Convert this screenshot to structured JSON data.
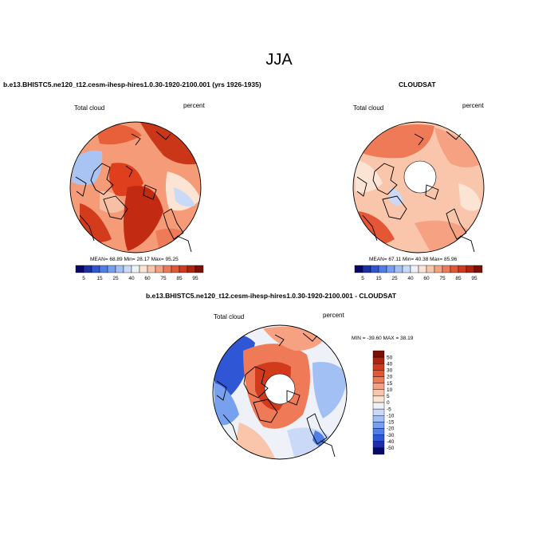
{
  "title": "JJA",
  "panels": [
    {
      "title": "b.e13.BHISTC5.ne120_t12.cesm-ihesp-hires1.0.30-1920-2100.001 (yrs 1926-1935)",
      "left_label": "Total cloud",
      "right_label": "percent",
      "stats": "MEAN=  68.89  Min=  28.17  Max=  95.25"
    },
    {
      "title": "CLOUDSAT",
      "left_label": "Total cloud",
      "right_label": "percent",
      "stats": "MEAN=  67.11  Min=  40.38  Max=  85.96"
    },
    {
      "title": "b.e13.BHISTC5.ne120_t12.cesm-ihesp-hires1.0.30-1920-2100.001 - CLOUDSAT",
      "left_label": "Total cloud",
      "right_label": "percent",
      "stats": "MIN = -39.60 MAX =  38.19"
    }
  ],
  "chart_data": [
    {
      "type": "heatmap",
      "projection": "polar-stereographic (north)",
      "title": "b.e13.BHISTC5.ne120_t12.cesm-ihesp-hires1.0.30-1920-2100.001 (yrs 1926-1935)",
      "variable": "Total cloud",
      "units": "percent",
      "mean": 68.89,
      "min": 28.17,
      "max": 95.25,
      "colorbar_levels": [
        5,
        10,
        15,
        20,
        25,
        30,
        35,
        40,
        50,
        60,
        65,
        70,
        75,
        80,
        85,
        90,
        95
      ],
      "colorbar_tick_labels": [
        "5",
        "15",
        "25",
        "40",
        "60",
        "75",
        "85",
        "95"
      ]
    },
    {
      "type": "heatmap",
      "projection": "polar-stereographic (north)",
      "title": "CLOUDSAT",
      "variable": "Total cloud",
      "units": "percent",
      "mean": 67.11,
      "min": 40.38,
      "max": 85.96,
      "colorbar_levels": [
        5,
        10,
        15,
        20,
        25,
        30,
        35,
        40,
        50,
        60,
        65,
        70,
        75,
        80,
        85,
        90,
        95
      ],
      "colorbar_tick_labels": [
        "5",
        "15",
        "25",
        "40",
        "60",
        "75",
        "85",
        "95"
      ]
    },
    {
      "type": "heatmap",
      "projection": "polar-stereographic (north)",
      "title": "b.e13.BHISTC5.ne120_t12.cesm-ihesp-hires1.0.30-1920-2100.001 - CLOUDSAT",
      "variable": "Total cloud",
      "units": "percent",
      "min": -39.6,
      "max": 38.19,
      "colorbar_levels": [
        -50,
        -40,
        -30,
        -20,
        -15,
        -10,
        -5,
        0,
        5,
        10,
        15,
        20,
        30,
        40,
        50
      ],
      "colorbar_tick_labels": [
        "50",
        "40",
        "30",
        "20",
        "15",
        "10",
        "5",
        "0",
        "-5",
        "-10",
        "-15",
        "-20",
        "-30",
        "-40",
        "-50"
      ]
    }
  ],
  "colors": {
    "abs_palette": [
      "#08086b",
      "#1c2fa8",
      "#2f56d4",
      "#4f7ee6",
      "#77a0ef",
      "#a2c0f4",
      "#cad9f7",
      "#eef2f8",
      "#fbe4d4",
      "#f9c6ab",
      "#f5a182",
      "#ef7a58",
      "#e55634",
      "#d13b1c",
      "#b0240f",
      "#7a0f06"
    ],
    "diff_palette": [
      "#7a0f06",
      "#b0240f",
      "#d13b1c",
      "#e55634",
      "#ef7a58",
      "#f5a182",
      "#f9c6ab",
      "#fbe4d4",
      "#eef2f8",
      "#cad9f7",
      "#a2c0f4",
      "#77a0ef",
      "#4f7ee6",
      "#2f56d4",
      "#1c2fa8",
      "#08086b"
    ]
  }
}
